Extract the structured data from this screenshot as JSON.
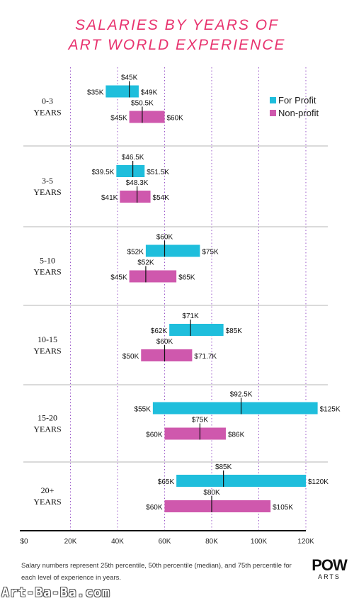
{
  "title_line1": "SALARIES BY YEARS OF",
  "title_line2": "ART WORLD EXPERIENCE",
  "footnote": "Salary numbers represent 25th percentile, 50th percentile (median), and 75th percentile for each level of experience in years.",
  "logo_line1": "POW",
  "logo_line2": "ARTS",
  "watermark": "Art-Ba-Ba.com",
  "colors": {
    "for_profit": "#1fbedc",
    "non_profit": "#cf58ad",
    "title": "#e8336f"
  },
  "chart_data": {
    "type": "box",
    "xlim": [
      0,
      120000
    ],
    "x_ticks": [
      0,
      20000,
      40000,
      60000,
      80000,
      100000,
      120000
    ],
    "x_tick_labels": [
      "$0",
      "20K",
      "40K",
      "60K",
      "80K",
      "100K",
      "120K"
    ],
    "grid": "vertical dotted",
    "legend_position": "top-right",
    "legend": [
      {
        "label": "For Profit",
        "key": "for_profit"
      },
      {
        "label": "Non-profit",
        "key": "non_profit"
      }
    ],
    "groups": [
      {
        "label1": "0-3",
        "label2": "YEARS",
        "for_profit": {
          "p25": 35000,
          "median": 45000,
          "p75": 49000,
          "p25_label": "$35K",
          "median_label": "$45K",
          "p75_label": "$49K"
        },
        "non_profit": {
          "p25": 45000,
          "median": 50500,
          "p75": 60000,
          "p25_label": "$45K",
          "median_label": "$50.5K",
          "p75_label": "$60K"
        }
      },
      {
        "label1": "3-5",
        "label2": "YEARS",
        "for_profit": {
          "p25": 39500,
          "median": 46500,
          "p75": 51500,
          "p25_label": "$39.5K",
          "median_label": "$46.5K",
          "p75_label": "$51.5K"
        },
        "non_profit": {
          "p25": 41000,
          "median": 48300,
          "p75": 54000,
          "p25_label": "$41K",
          "median_label": "$48.3K",
          "p75_label": "$54K"
        }
      },
      {
        "label1": "5-10",
        "label2": "YEARS",
        "for_profit": {
          "p25": 52000,
          "median": 60000,
          "p75": 75000,
          "p25_label": "$52K",
          "median_label": "$60K",
          "p75_label": "$75K"
        },
        "non_profit": {
          "p25": 45000,
          "median": 52000,
          "p75": 65000,
          "p25_label": "$45K",
          "median_label": "$52K",
          "p75_label": "$65K"
        }
      },
      {
        "label1": "10-15",
        "label2": "YEARS",
        "for_profit": {
          "p25": 62000,
          "median": 71000,
          "p75": 85000,
          "p25_label": "$62K",
          "median_label": "$71K",
          "p75_label": "$85K"
        },
        "non_profit": {
          "p25": 50000,
          "median": 60000,
          "p75": 71700,
          "p25_label": "$50K",
          "median_label": "$60K",
          "p75_label": "$71.7K"
        }
      },
      {
        "label1": "15-20",
        "label2": "YEARS",
        "for_profit": {
          "p25": 55000,
          "median": 92500,
          "p75": 125000,
          "p25_label": "$55K",
          "median_label": "$92.5K",
          "p75_label": "$125K"
        },
        "non_profit": {
          "p25": 60000,
          "median": 75000,
          "p75": 86000,
          "p25_label": "$60K",
          "median_label": "$75K",
          "p75_label": "$86K"
        }
      },
      {
        "label1": "20+",
        "label2": "YEARS",
        "for_profit": {
          "p25": 65000,
          "median": 85000,
          "p75": 120000,
          "p25_label": "$65K",
          "median_label": "$85K",
          "p75_label": "$120K"
        },
        "non_profit": {
          "p25": 60000,
          "median": 80000,
          "p75": 105000,
          "p25_label": "$60K",
          "median_label": "$80K",
          "p75_label": "$105K"
        }
      }
    ]
  }
}
